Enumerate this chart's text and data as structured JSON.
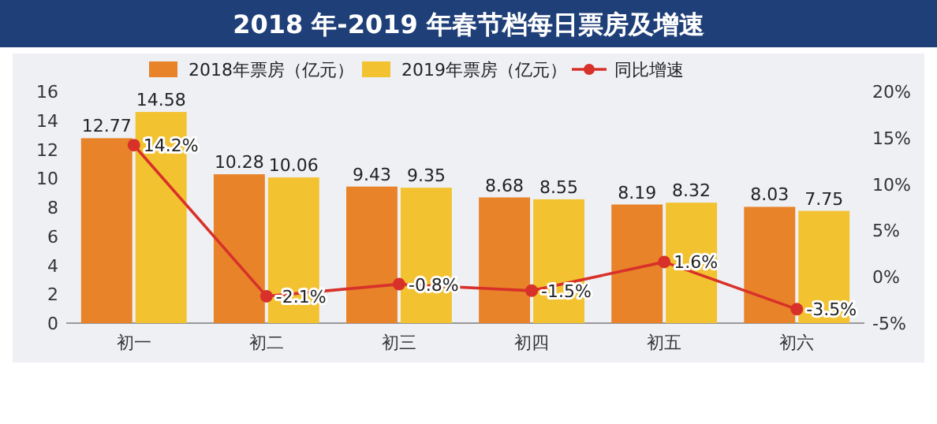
{
  "chart_data": {
    "type": "bar",
    "title": "2018 年-2019 年春节档每日票房及增速",
    "categories": [
      "初一",
      "初二",
      "初三",
      "初四",
      "初五",
      "初六"
    ],
    "series": [
      {
        "name": "2018年票房（亿元）",
        "color": "#e8832a",
        "values": [
          12.77,
          10.28,
          9.43,
          8.68,
          8.19,
          8.03
        ],
        "value_labels": [
          "12.77",
          "10.28",
          "9.43",
          "8.68",
          "8.19",
          "8.03"
        ]
      },
      {
        "name": "2019年票房（亿元）",
        "color": "#f3c230",
        "values": [
          14.58,
          10.06,
          9.35,
          8.55,
          8.32,
          7.75
        ],
        "value_labels": [
          "14.58",
          "10.06",
          "9.35",
          "8.55",
          "8.32",
          "7.75"
        ]
      },
      {
        "name": "同比增速",
        "type": "line",
        "axis": "y2",
        "color": "#d8312a",
        "marker": "circle",
        "values": [
          14.2,
          -2.1,
          -0.8,
          -1.5,
          1.6,
          -3.5
        ],
        "value_labels": [
          "14.2%",
          "-2.1%",
          "-0.8%",
          "-1.5%",
          "1.6%",
          "-3.5%"
        ]
      }
    ],
    "ylim": [
      0,
      16
    ],
    "yticks": [
      0,
      2,
      4,
      6,
      8,
      10,
      12,
      14,
      16
    ],
    "y2lim": [
      -5,
      20
    ],
    "y2ticks": [
      {
        "value": -5,
        "label": "-5%"
      },
      {
        "value": 0,
        "label": "0%"
      },
      {
        "value": 5,
        "label": "5%"
      },
      {
        "value": 10,
        "label": "10%"
      },
      {
        "value": 15,
        "label": "15%"
      },
      {
        "value": 20,
        "label": "20%"
      }
    ],
    "legend": "top",
    "grid": false
  }
}
